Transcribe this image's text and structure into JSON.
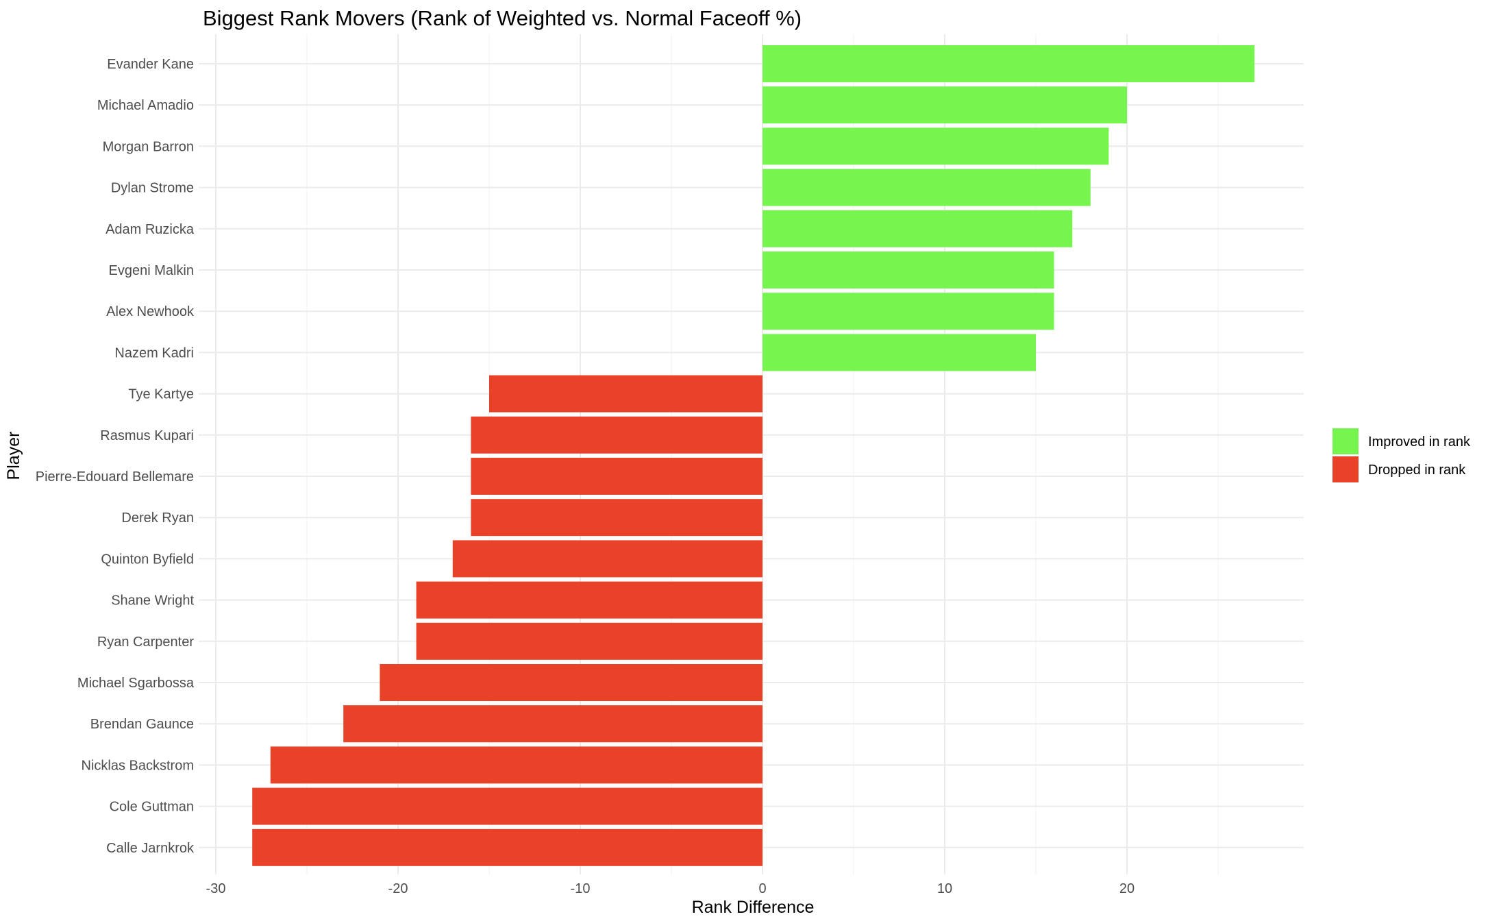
{
  "chart_data": {
    "type": "bar",
    "orientation": "horizontal",
    "title": "Biggest Rank Movers (Rank of Weighted vs. Normal Faceoff %)",
    "xlabel": "Rank Difference",
    "ylabel": "Player",
    "xlim": [
      -30,
      30
    ],
    "x_ticks": [
      -30,
      -20,
      -10,
      0,
      10,
      20
    ],
    "grid": true,
    "legend_position": "right",
    "legend": [
      {
        "label": "Improved in rank",
        "color": "#76f54f"
      },
      {
        "label": "Dropped in rank",
        "color": "#e84229"
      }
    ],
    "categories": [
      "Evander Kane",
      "Michael Amadio",
      "Morgan Barron",
      "Dylan Strome",
      "Adam Ruzicka",
      "Evgeni Malkin",
      "Alex Newhook",
      "Nazem Kadri",
      "Tye Kartye",
      "Rasmus Kupari",
      "Pierre-Edouard Bellemare",
      "Derek Ryan",
      "Quinton Byfield",
      "Shane Wright",
      "Ryan Carpenter",
      "Michael Sgarbossa",
      "Brendan Gaunce",
      "Nicklas Backstrom",
      "Cole Guttman",
      "Calle Jarnkrok"
    ],
    "values": [
      27,
      20,
      19,
      18,
      17,
      16,
      16,
      15,
      -15,
      -16,
      -16,
      -16,
      -17,
      -19,
      -19,
      -21,
      -23,
      -27,
      -28,
      -28
    ],
    "colors": {
      "positive": "#76f54f",
      "negative": "#e84229"
    }
  }
}
